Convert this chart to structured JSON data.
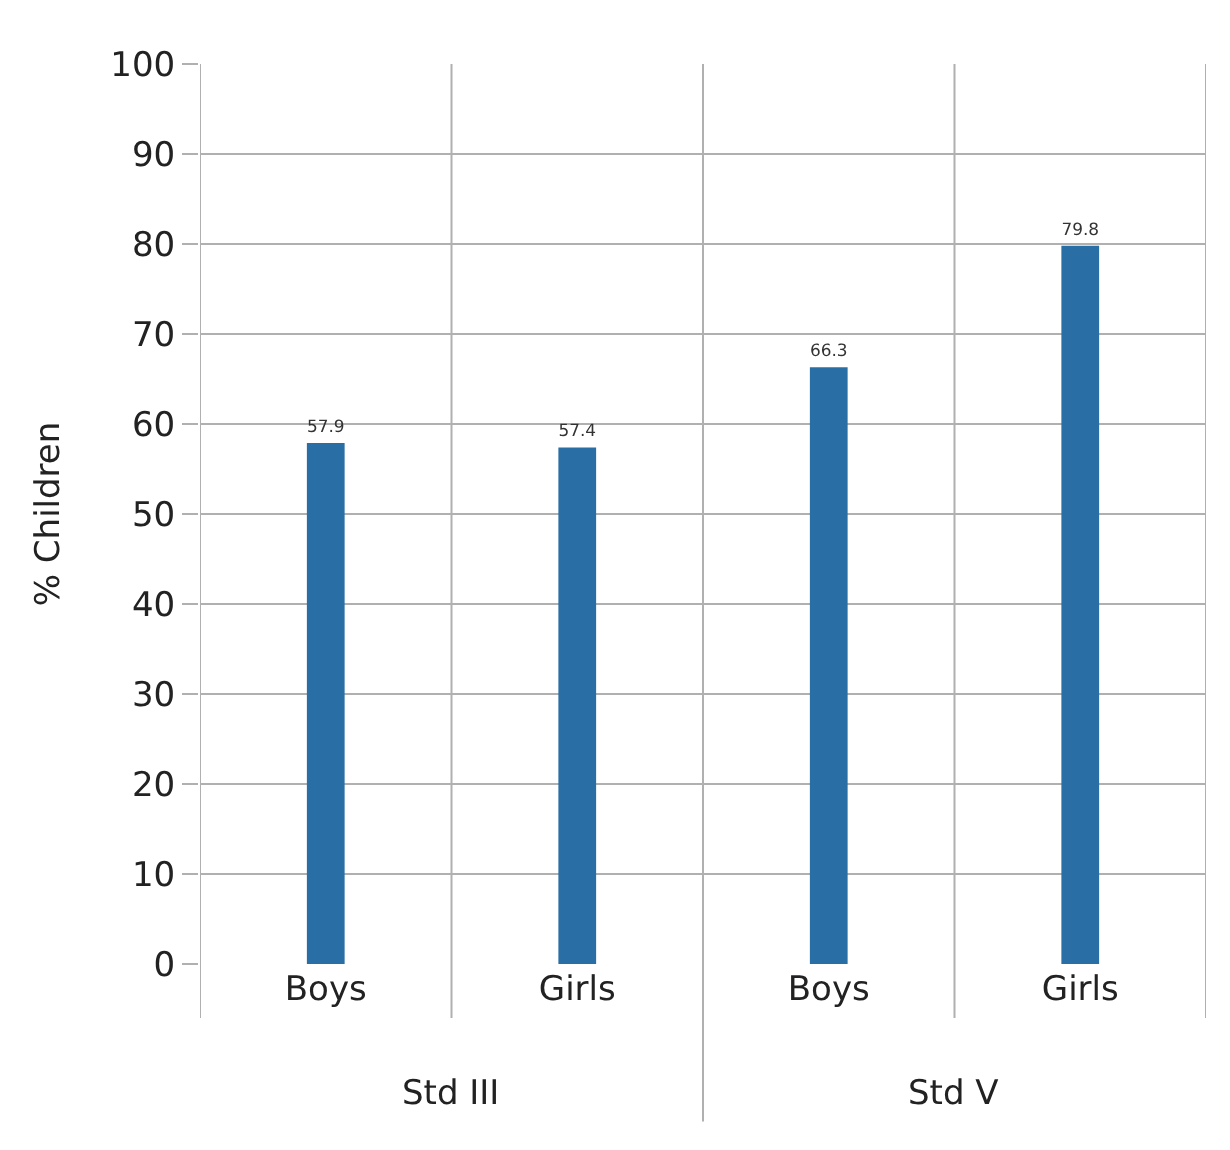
{
  "chart_data": {
    "type": "bar",
    "ylabel": "% Children",
    "categories": [
      "Boys",
      "Girls",
      "Boys",
      "Girls"
    ],
    "values": [
      57.9,
      57.4,
      66.3,
      79.8
    ],
    "color": "#2a6ea6",
    "ylim": [
      0,
      100
    ],
    "yticks": [
      0,
      10,
      20,
      30,
      40,
      50,
      60,
      70,
      80,
      90,
      100
    ],
    "grid": true,
    "data_labels": true,
    "annotations": [
      "Std III",
      "Std V"
    ]
  }
}
